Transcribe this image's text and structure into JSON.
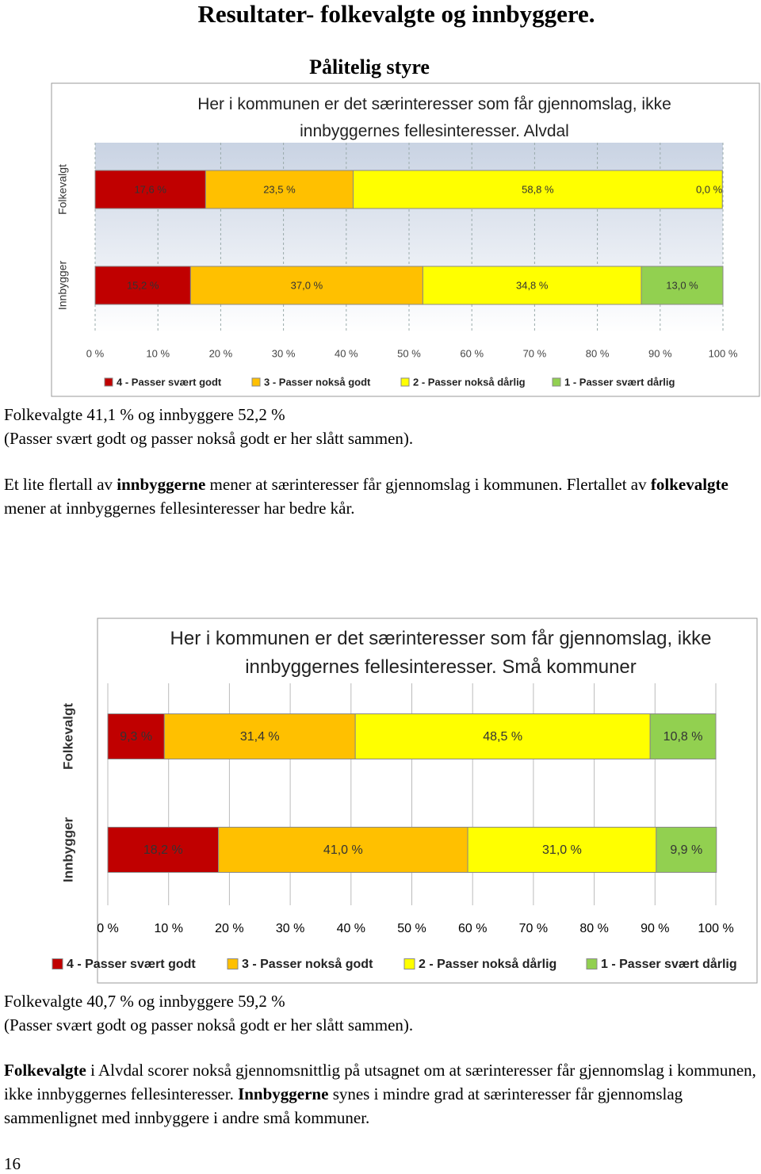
{
  "title": "Resultater- folkevalgte og innbyggere.",
  "section_title": "Pålitelig styre",
  "page_number": "16",
  "chart_data": [
    {
      "type": "stacked_barh",
      "title": "Her i kommunen er det særinteresser som får gjennomslag, ikke innbyggernes fellesinteresser. Alvdal",
      "categories": [
        "Folkevalgt",
        "Innbygger"
      ],
      "series": [
        {
          "name": "4 - Passer svært godt",
          "color": "#c00000",
          "values": [
            17.6,
            15.2
          ],
          "value_labels": [
            "17,6 %",
            "15,2 %"
          ]
        },
        {
          "name": "3 - Passer nokså godt",
          "color": "#ffc000",
          "values": [
            23.5,
            37.0
          ],
          "value_labels": [
            "23,5 %",
            "37,0 %"
          ]
        },
        {
          "name": "2 - Passer nokså dårlig",
          "color": "#ffff00",
          "values": [
            58.8,
            34.8
          ],
          "value_labels": [
            "58,8 %",
            "34,8 %"
          ]
        },
        {
          "name": "1 - Passer svært dårlig",
          "color": "#92d050",
          "values": [
            0.0,
            13.0
          ],
          "value_labels": [
            "0,0 %",
            "13,0 %"
          ]
        }
      ],
      "xlim": [
        0,
        100
      ],
      "xticks": [
        {
          "value": 0,
          "label": "0 %"
        },
        {
          "value": 10,
          "label": "10 %"
        },
        {
          "value": 20,
          "label": "20 %"
        },
        {
          "value": 30,
          "label": "30 %"
        },
        {
          "value": 40,
          "label": "40 %"
        },
        {
          "value": 50,
          "label": "50 %"
        },
        {
          "value": 60,
          "label": "60 %"
        },
        {
          "value": 70,
          "label": "70 %"
        },
        {
          "value": 80,
          "label": "80 %"
        },
        {
          "value": 90,
          "label": "90 %"
        },
        {
          "value": 100,
          "label": "100 %"
        }
      ],
      "grid": true,
      "legend": "bottom"
    },
    {
      "type": "stacked_barh",
      "title": "Her i kommunen er det særinteresser som får gjennomslag, ikke innbyggernes fellesinteresser. Små kommuner",
      "categories": [
        "Folkevalgt",
        "Innbygger"
      ],
      "series": [
        {
          "name": "4 - Passer svært godt",
          "color": "#c00000",
          "values": [
            9.3,
            18.2
          ],
          "value_labels": [
            "9,3 %",
            "18,2 %"
          ]
        },
        {
          "name": "3 - Passer nokså godt",
          "color": "#ffc000",
          "values": [
            31.4,
            41.0
          ],
          "value_labels": [
            "31,4 %",
            "41,0 %"
          ]
        },
        {
          "name": "2 - Passer nokså dårlig",
          "color": "#ffff00",
          "values": [
            48.5,
            31.0
          ],
          "value_labels": [
            "48,5 %",
            "31,0 %"
          ]
        },
        {
          "name": "1 - Passer svært dårlig",
          "color": "#92d050",
          "values": [
            10.8,
            9.9
          ],
          "value_labels": [
            "10,8 %",
            "9,9 %"
          ]
        }
      ],
      "xlim": [
        0,
        100
      ],
      "xticks": [
        {
          "value": 0,
          "label": "0 %"
        },
        {
          "value": 10,
          "label": "10 %"
        },
        {
          "value": 20,
          "label": "20 %"
        },
        {
          "value": 30,
          "label": "30 %"
        },
        {
          "value": 40,
          "label": "40 %"
        },
        {
          "value": 50,
          "label": "50 %"
        },
        {
          "value": 60,
          "label": "60 %"
        },
        {
          "value": 70,
          "label": "70 %"
        },
        {
          "value": 80,
          "label": "80 %"
        },
        {
          "value": 90,
          "label": "90 %"
        },
        {
          "value": 100,
          "label": "100 %"
        }
      ],
      "grid": true,
      "legend": "bottom"
    }
  ],
  "paragraphs": [
    [
      {
        "text": "Folkevalgte 41,1 % og innbyggere 52,2 %",
        "bold": false
      }
    ],
    [
      {
        "text": "(Passer svært godt og passer nokså godt er her slått sammen).",
        "bold": false
      }
    ],
    [
      {
        "text": "Et lite flertall av ",
        "bold": false
      },
      {
        "text": "innbyggerne",
        "bold": true
      },
      {
        "text": " mener at særinteresser får gjennomslag i kommunen. Flertallet av ",
        "bold": false
      },
      {
        "text": "folkevalgte",
        "bold": true
      },
      {
        "text": " mener at innbyggernes fellesinteresser har bedre kår.",
        "bold": false
      }
    ],
    [
      {
        "text": "Folkevalgte 40,7 % og innbyggere 59,2 %",
        "bold": false
      }
    ],
    [
      {
        "text": "(Passer svært godt og passer nokså godt er her slått sammen).",
        "bold": false
      }
    ],
    [
      {
        "text": "Folkevalgte",
        "bold": true
      },
      {
        "text": " i Alvdal scorer nokså gjennomsnittlig på utsagnet om at særinteresser får gjennomslag i kommunen, ikke innbyggernes fellesinteresser. ",
        "bold": false
      },
      {
        "text": "Innbyggerne",
        "bold": true
      },
      {
        "text": " synes i mindre grad at særinteresser får gjennomslag sammenlignet med innbyggere i andre små kommuner.",
        "bold": false
      }
    ]
  ]
}
